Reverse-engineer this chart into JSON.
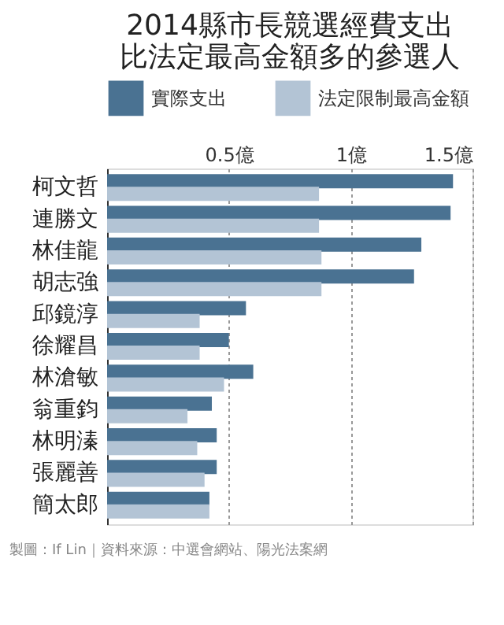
{
  "chart_data": {
    "type": "bar",
    "orientation": "horizontal",
    "title": "2014縣市長競選經費支出比法定最高金額多的參選人",
    "categories": [
      "柯文哲",
      "連勝文",
      "林佳龍",
      "胡志強",
      "邱鏡淳",
      "徐耀昌",
      "林滄敏",
      "翁重鈞",
      "林明溱",
      "張麗善",
      "簡太郎"
    ],
    "series": [
      {
        "name": "實際支出",
        "color": "#4a7292",
        "values": [
          1.42,
          1.41,
          1.29,
          1.26,
          0.57,
          0.5,
          0.6,
          0.43,
          0.45,
          0.45,
          0.42
        ]
      },
      {
        "name": "法定限制最高金額",
        "color": "#b3c4d5",
        "values": [
          0.87,
          0.87,
          0.88,
          0.88,
          0.38,
          0.38,
          0.48,
          0.33,
          0.37,
          0.4,
          0.42
        ]
      }
    ],
    "xlim": [
      0,
      1.5
    ],
    "xticks": [
      {
        "value": 0.5,
        "label": "0.5億"
      },
      {
        "value": 1,
        "label": "1億"
      },
      {
        "value": 1.5,
        "label": "1.5億"
      }
    ],
    "grid": "x",
    "legend": "top",
    "annotations": [
      "製圖：If Lin｜資料來源：中選會網站、陽光法案網"
    ]
  }
}
